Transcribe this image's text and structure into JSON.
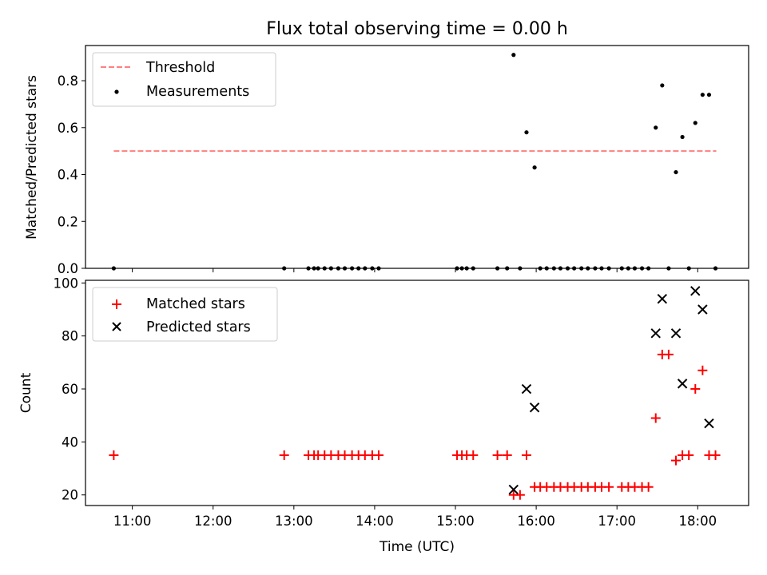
{
  "chart_data": [
    {
      "type": "scatter",
      "title": "Flux total observing time = 0.00 h",
      "xlabel": "",
      "ylabel": "Matched/Predicted stars",
      "xlim": [
        10.42,
        18.63
      ],
      "ylim": [
        0,
        0.95
      ],
      "yticks": [
        0,
        0.2,
        0.4,
        0.6,
        0.8
      ],
      "ytick_labels": [
        "0.0",
        "0.2",
        "0.4",
        "0.6",
        "0.8"
      ],
      "xticks": [
        11,
        12,
        13,
        14,
        15,
        16,
        17,
        18
      ],
      "xtick_labels": [
        "",
        "",
        "",
        "",
        "",
        "",
        "",
        ""
      ],
      "legend": "upper-left",
      "threshold": {
        "name": "Threshold",
        "color": "#ff8080",
        "x": [
          10.77,
          18.23
        ],
        "y": 0.5
      },
      "series": [
        {
          "name": "Measurements",
          "marker": "dot",
          "color": "#000000",
          "points": [
            [
              10.77,
              0
            ],
            [
              12.88,
              0
            ],
            [
              13.18,
              0
            ],
            [
              13.25,
              0
            ],
            [
              13.3,
              0
            ],
            [
              13.38,
              0
            ],
            [
              13.46,
              0
            ],
            [
              13.55,
              0
            ],
            [
              13.63,
              0
            ],
            [
              13.72,
              0
            ],
            [
              13.8,
              0
            ],
            [
              13.88,
              0
            ],
            [
              13.97,
              0
            ],
            [
              14.05,
              0
            ],
            [
              15.02,
              0
            ],
            [
              15.08,
              0
            ],
            [
              15.14,
              0
            ],
            [
              15.22,
              0
            ],
            [
              15.52,
              0
            ],
            [
              15.64,
              0
            ],
            [
              15.72,
              0.91
            ],
            [
              15.8,
              0
            ],
            [
              15.88,
              0.58
            ],
            [
              15.98,
              0.43
            ],
            [
              16.05,
              0
            ],
            [
              16.13,
              0
            ],
            [
              16.22,
              0
            ],
            [
              16.3,
              0
            ],
            [
              16.39,
              0
            ],
            [
              16.47,
              0
            ],
            [
              16.56,
              0
            ],
            [
              16.64,
              0
            ],
            [
              16.73,
              0
            ],
            [
              16.81,
              0
            ],
            [
              16.9,
              0
            ],
            [
              17.06,
              0
            ],
            [
              17.14,
              0
            ],
            [
              17.22,
              0
            ],
            [
              17.31,
              0
            ],
            [
              17.39,
              0
            ],
            [
              17.48,
              0.6
            ],
            [
              17.56,
              0.78
            ],
            [
              17.64,
              0
            ],
            [
              17.73,
              0.41
            ],
            [
              17.81,
              0.56
            ],
            [
              17.89,
              0
            ],
            [
              17.97,
              0.62
            ],
            [
              18.06,
              0.74
            ],
            [
              18.14,
              0.74
            ],
            [
              18.22,
              0
            ]
          ]
        }
      ]
    },
    {
      "type": "scatter",
      "title": "",
      "xlabel": "Time (UTC)",
      "ylabel": "Count",
      "xlim": [
        10.42,
        18.63
      ],
      "ylim": [
        16,
        101
      ],
      "yticks": [
        20,
        40,
        60,
        80,
        100
      ],
      "ytick_labels": [
        "20",
        "40",
        "60",
        "80",
        "100"
      ],
      "xticks": [
        11,
        12,
        13,
        14,
        15,
        16,
        17,
        18
      ],
      "xtick_labels": [
        "11:00",
        "12:00",
        "13:00",
        "14:00",
        "15:00",
        "16:00",
        "17:00",
        "18:00"
      ],
      "legend": "upper-left",
      "series": [
        {
          "name": "Matched stars",
          "marker": "plus",
          "color": "#ff0000",
          "points": [
            [
              10.77,
              35
            ],
            [
              12.88,
              35
            ],
            [
              13.18,
              35
            ],
            [
              13.25,
              35
            ],
            [
              13.3,
              35
            ],
            [
              13.38,
              35
            ],
            [
              13.46,
              35
            ],
            [
              13.55,
              35
            ],
            [
              13.63,
              35
            ],
            [
              13.72,
              35
            ],
            [
              13.8,
              35
            ],
            [
              13.88,
              35
            ],
            [
              13.97,
              35
            ],
            [
              14.05,
              35
            ],
            [
              15.02,
              35
            ],
            [
              15.08,
              35
            ],
            [
              15.14,
              35
            ],
            [
              15.22,
              35
            ],
            [
              15.52,
              35
            ],
            [
              15.64,
              35
            ],
            [
              15.72,
              20
            ],
            [
              15.8,
              20
            ],
            [
              15.88,
              35
            ],
            [
              15.98,
              23
            ],
            [
              16.05,
              23
            ],
            [
              16.13,
              23
            ],
            [
              16.22,
              23
            ],
            [
              16.3,
              23
            ],
            [
              16.39,
              23
            ],
            [
              16.47,
              23
            ],
            [
              16.56,
              23
            ],
            [
              16.64,
              23
            ],
            [
              16.73,
              23
            ],
            [
              16.81,
              23
            ],
            [
              16.9,
              23
            ],
            [
              17.06,
              23
            ],
            [
              17.14,
              23
            ],
            [
              17.22,
              23
            ],
            [
              17.31,
              23
            ],
            [
              17.39,
              23
            ],
            [
              17.48,
              49
            ],
            [
              17.56,
              73
            ],
            [
              17.64,
              73
            ],
            [
              17.73,
              33
            ],
            [
              17.81,
              35
            ],
            [
              17.89,
              35
            ],
            [
              17.97,
              60
            ],
            [
              18.06,
              67
            ],
            [
              18.14,
              35
            ],
            [
              18.22,
              35
            ]
          ]
        },
        {
          "name": "Predicted stars",
          "marker": "x",
          "color": "#000000",
          "points": [
            [
              15.72,
              22
            ],
            [
              15.88,
              60
            ],
            [
              15.98,
              53
            ],
            [
              17.48,
              81
            ],
            [
              17.56,
              94
            ],
            [
              17.73,
              81
            ],
            [
              17.81,
              62
            ],
            [
              17.97,
              97
            ],
            [
              18.06,
              90
            ],
            [
              18.14,
              47
            ]
          ]
        }
      ]
    }
  ]
}
